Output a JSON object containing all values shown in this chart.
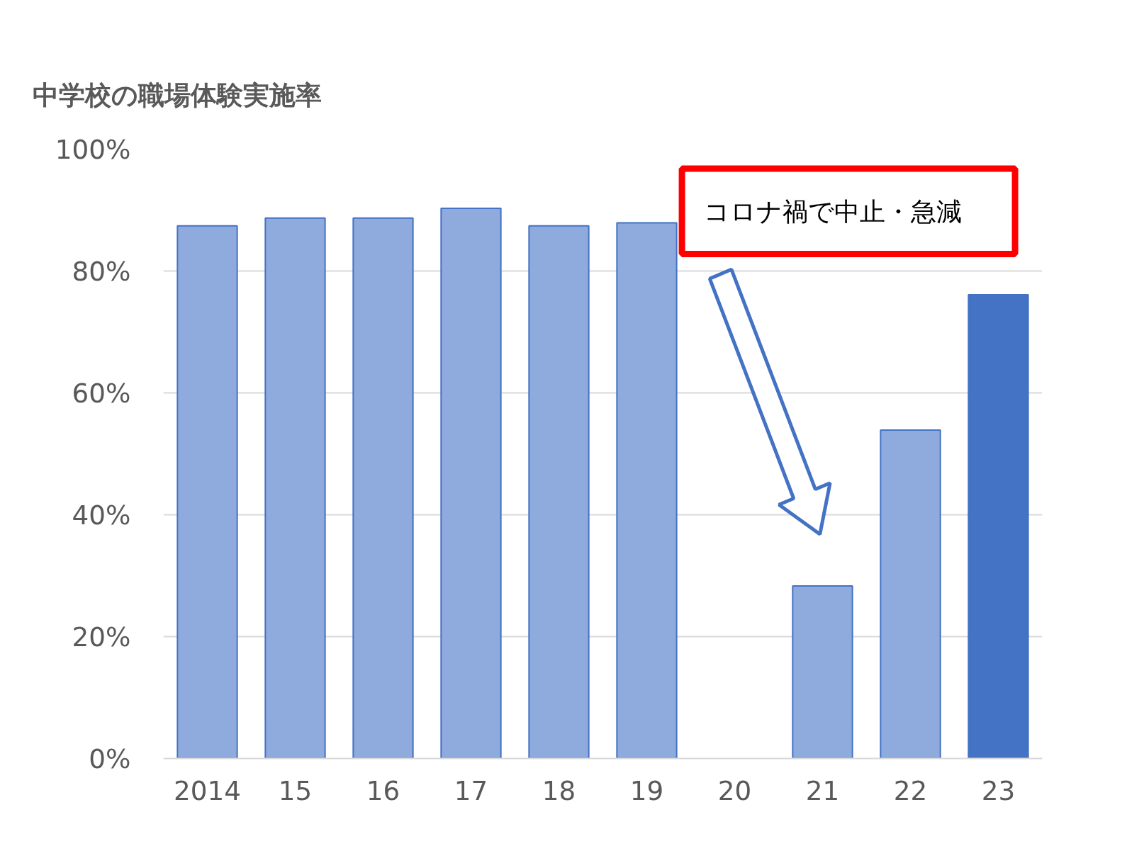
{
  "chart_data": {
    "type": "bar",
    "title": "中学校の職場体験実施率",
    "categories": [
      "2014",
      "15",
      "16",
      "17",
      "18",
      "19",
      "20",
      "21",
      "22",
      "23"
    ],
    "values": [
      87.4,
      88.7,
      88.7,
      90.3,
      87.4,
      87.9,
      null,
      28.3,
      53.9,
      76.1
    ],
    "colors": [
      "#8faadc",
      "#8faadc",
      "#8faadc",
      "#8faadc",
      "#8faadc",
      "#8faadc",
      "#8faadc",
      "#8faadc",
      "#8faadc",
      "#4472c4"
    ],
    "ylim": [
      0,
      100
    ],
    "yticks": [
      {
        "value": 0,
        "label": "0%"
      },
      {
        "value": 20,
        "label": "20%"
      },
      {
        "value": 40,
        "label": "40%"
      },
      {
        "value": 60,
        "label": "60%"
      },
      {
        "value": 80,
        "label": "80%"
      },
      {
        "value": 100,
        "label": "100%"
      }
    ],
    "grid": "y",
    "annotations": [
      "コロナ禍で中止・急減"
    ]
  }
}
